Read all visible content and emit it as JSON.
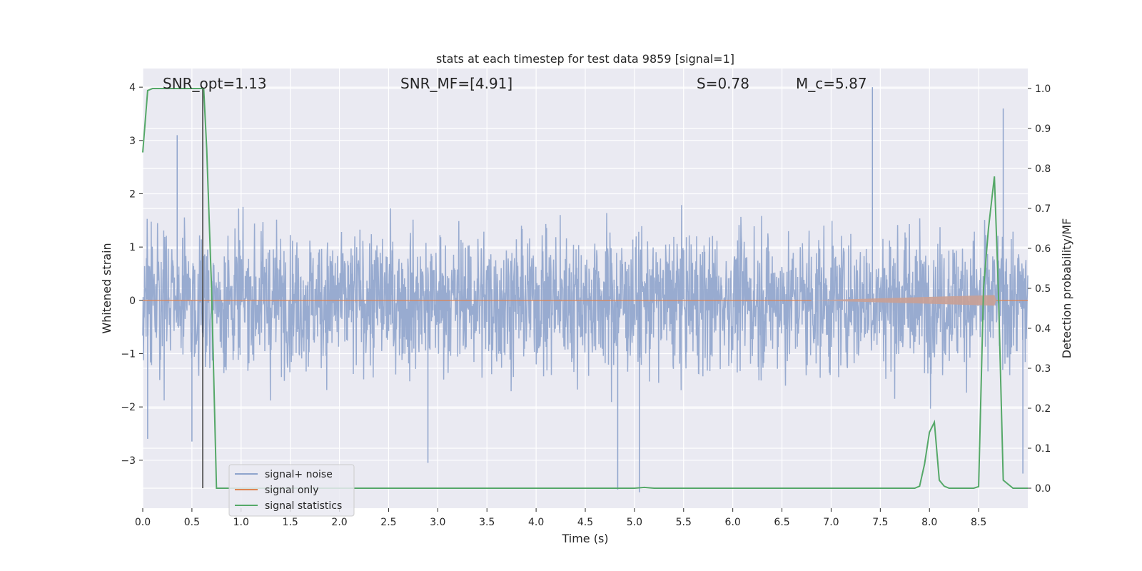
{
  "chart_data": {
    "type": "line",
    "title": "stats at each timestep for test data 9859 [signal=1]",
    "xlabel": "Time (s)",
    "ylabel_left": "Whitened strain",
    "ylabel_right": "Detection probability/MF",
    "xlim": [
      0,
      9
    ],
    "ylim_left": [
      -3.9,
      4.35
    ],
    "ylim_right": [
      -0.05,
      1.05
    ],
    "x_ticks": [
      "0.0",
      "0.5",
      "1.0",
      "1.5",
      "2.0",
      "2.5",
      "3.0",
      "3.5",
      "4.0",
      "4.5",
      "5.0",
      "5.5",
      "6.0",
      "6.5",
      "7.0",
      "7.5",
      "8.0",
      "8.5"
    ],
    "y_ticks_left": [
      "4",
      "3",
      "2",
      "1",
      "0",
      "−1",
      "−2",
      "−3"
    ],
    "y_ticks_right": [
      "1.0",
      "0.9",
      "0.8",
      "0.7",
      "0.6",
      "0.5",
      "0.4",
      "0.3",
      "0.2",
      "0.1",
      "0.0"
    ],
    "grid": true,
    "legend_position": "lower-left",
    "annotations": [
      {
        "id": "snr-opt",
        "text": "SNR_opt=1.13"
      },
      {
        "id": "snr-mf",
        "text": "SNR_MF=[4.91]"
      },
      {
        "id": "s",
        "text": "S=0.78"
      },
      {
        "id": "mc",
        "text": "M_c=5.87"
      }
    ],
    "marker_line_x": 0.61,
    "series": [
      {
        "name": "signal+ noise",
        "axis": "left",
        "color": "#8fa4cc",
        "description_range": [
          -3.6,
          4.0
        ],
        "peaks": [
          [
            0.05,
            -2.6
          ],
          [
            0.5,
            -2.65
          ],
          [
            0.35,
            3.1
          ],
          [
            2.9,
            -3.05
          ],
          [
            4.83,
            -3.55
          ],
          [
            5.05,
            -3.6
          ],
          [
            7.42,
            4.0
          ],
          [
            8.75,
            3.6
          ],
          [
            8.95,
            -3.25
          ]
        ]
      },
      {
        "name": "signal only",
        "axis": "left",
        "color": "#dd8452",
        "chirp_start": 6.8,
        "chirp_end": 8.66
      },
      {
        "name": "signal statistics",
        "axis": "right",
        "color": "#55a868",
        "x": [
          0.0,
          0.05,
          0.1,
          0.15,
          0.2,
          0.3,
          0.4,
          0.5,
          0.55,
          0.6,
          0.62,
          0.65,
          0.7,
          0.75,
          0.8,
          1.0,
          2.0,
          3.0,
          4.0,
          5.0,
          5.1,
          5.2,
          6.0,
          7.0,
          7.8,
          7.85,
          7.9,
          7.95,
          8.0,
          8.05,
          8.1,
          8.15,
          8.2,
          8.3,
          8.4,
          8.45,
          8.5,
          8.55,
          8.6,
          8.66,
          8.7,
          8.75,
          8.8,
          8.85,
          8.9,
          9.0
        ],
        "y": [
          0.84,
          0.995,
          1.0,
          1.0,
          1.0,
          1.0,
          1.0,
          1.0,
          1.0,
          1.0,
          1.0,
          0.85,
          0.5,
          0.0,
          0.0,
          0.0,
          0.0,
          0.0,
          0.0,
          0.0,
          0.002,
          0.0,
          0.0,
          0.0,
          0.0,
          0.0,
          0.005,
          0.06,
          0.14,
          0.165,
          0.02,
          0.005,
          0.0,
          0.0,
          0.0,
          0.0,
          0.004,
          0.5,
          0.65,
          0.78,
          0.5,
          0.02,
          0.01,
          0.0,
          0.0,
          0.0
        ]
      }
    ]
  }
}
